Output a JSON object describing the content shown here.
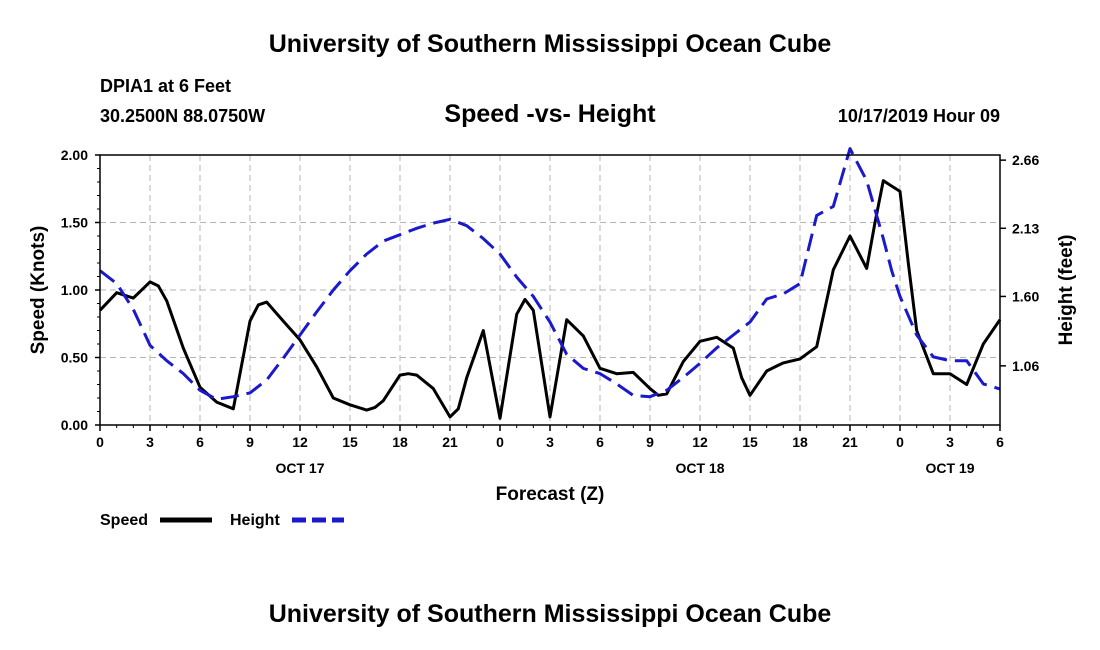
{
  "header": {
    "title": "University of Southern Mississippi Ocean Cube",
    "station": "DPIA1 at 6 Feet",
    "coords": "30.2500N 88.0750W",
    "chart_title": "Speed -vs- Height",
    "datetime": "10/17/2019 Hour 09"
  },
  "footer": {
    "title": "University of Southern Mississippi Ocean Cube"
  },
  "colors": {
    "speed": "#000000",
    "height": "#1a1acc",
    "grid": "#b4b4b4"
  },
  "chart_data": {
    "type": "line",
    "title": "Speed -vs- Height",
    "xlabel": "Forecast (Z)",
    "ylabel": "Speed (Knots)",
    "y2label": "Height (feet)",
    "xlim": [
      0,
      54
    ],
    "ylim": [
      0,
      2.0
    ],
    "y2lim": [
      0.6,
      2.7
    ],
    "x_ticks": [
      0,
      3,
      6,
      9,
      12,
      15,
      18,
      21,
      24,
      27,
      30,
      33,
      36,
      39,
      42,
      45,
      48,
      51,
      54
    ],
    "x_tick_labels": [
      "0",
      "3",
      "6",
      "9",
      "12",
      "15",
      "18",
      "21",
      "0",
      "3",
      "6",
      "9",
      "12",
      "15",
      "18",
      "21",
      "0",
      "3",
      "6"
    ],
    "date_labels": [
      {
        "x": 12,
        "label": "OCT 17"
      },
      {
        "x": 36,
        "label": "OCT 18"
      },
      {
        "x": 51,
        "label": "OCT 19"
      }
    ],
    "y_ticks": [
      0,
      0.5,
      1.0,
      1.5,
      2.0
    ],
    "y_tick_labels": [
      "0.00",
      "0.50",
      "1.00",
      "1.50",
      "2.00"
    ],
    "y2_ticks": [
      1.06,
      1.6,
      2.13,
      2.66
    ],
    "y2_tick_labels": [
      "1.06",
      "1.60",
      "2.13",
      "2.66"
    ],
    "grid": true,
    "legend_position": "bottom-left",
    "series": [
      {
        "name": "Speed",
        "axis": "left",
        "style": "solid",
        "x": [
          0,
          1,
          2,
          3,
          3.5,
          4,
          5,
          6,
          7,
          8,
          9,
          9.5,
          10,
          11,
          12,
          13,
          14,
          15,
          16,
          16.5,
          17,
          18,
          18.5,
          19,
          20,
          21,
          21.5,
          22,
          23,
          24,
          25,
          25.5,
          26,
          27,
          28,
          29,
          30,
          31,
          32,
          33,
          33.5,
          34,
          35,
          36,
          37,
          38,
          38.5,
          39,
          40,
          40.5,
          41,
          42,
          43,
          44,
          45,
          46,
          46.5,
          47,
          48,
          48.5,
          49,
          50,
          51,
          52,
          53,
          54
        ],
        "values": [
          0.85,
          0.98,
          0.94,
          1.06,
          1.03,
          0.92,
          0.57,
          0.28,
          0.17,
          0.12,
          0.77,
          0.89,
          0.91,
          0.77,
          0.63,
          0.43,
          0.2,
          0.15,
          0.11,
          0.13,
          0.18,
          0.37,
          0.38,
          0.37,
          0.27,
          0.06,
          0.12,
          0.35,
          0.7,
          0.05,
          0.82,
          0.93,
          0.85,
          0.06,
          0.78,
          0.66,
          0.42,
          0.38,
          0.39,
          0.27,
          0.22,
          0.23,
          0.47,
          0.62,
          0.65,
          0.57,
          0.35,
          0.22,
          0.4,
          0.43,
          0.46,
          0.49,
          0.58,
          1.15,
          1.4,
          1.16,
          1.5,
          1.81,
          1.73,
          1.2,
          0.7,
          0.38,
          0.38,
          0.3,
          0.6,
          0.78
        ]
      },
      {
        "name": "Height",
        "axis": "right",
        "style": "dashed",
        "x": [
          0,
          1,
          2,
          3,
          4,
          5,
          6,
          7,
          8,
          9,
          10,
          11,
          12,
          13,
          14,
          15,
          16,
          17,
          18,
          19,
          20,
          21,
          22,
          23,
          24,
          25,
          26,
          27,
          28,
          29,
          30,
          31,
          32,
          33,
          34,
          35,
          36,
          37,
          38,
          39,
          40,
          41,
          42,
          43,
          44,
          45,
          46,
          47,
          47.5,
          48,
          49,
          50,
          51,
          52,
          53,
          54
        ],
        "values": [
          1.8,
          1.7,
          1.5,
          1.22,
          1.1,
          1.0,
          0.87,
          0.8,
          0.82,
          0.85,
          0.95,
          1.12,
          1.3,
          1.48,
          1.65,
          1.8,
          1.93,
          2.03,
          2.08,
          2.13,
          2.17,
          2.2,
          2.15,
          2.05,
          1.93,
          1.75,
          1.6,
          1.4,
          1.15,
          1.04,
          1.0,
          0.92,
          0.83,
          0.82,
          0.87,
          0.97,
          1.08,
          1.2,
          1.3,
          1.4,
          1.58,
          1.62,
          1.7,
          2.23,
          2.3,
          2.75,
          2.5,
          2.05,
          1.8,
          1.6,
          1.3,
          1.13,
          1.1,
          1.1,
          0.92,
          0.88
        ]
      }
    ]
  }
}
